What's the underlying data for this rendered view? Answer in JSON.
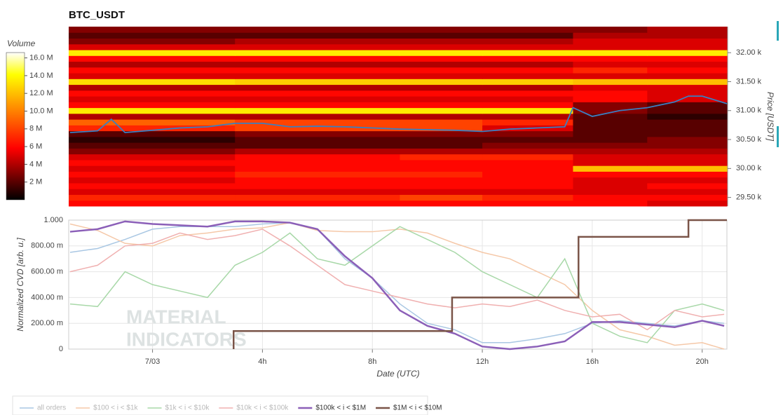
{
  "chart_data": [
    {
      "type": "heatmap",
      "title": "BTC_USDT",
      "xlim": [
        -3.05,
        20.9
      ],
      "ylim": [
        29.35,
        32.45
      ],
      "x_edges": [
        -3.05,
        3,
        9,
        12,
        15.3,
        18,
        20.9
      ],
      "y_edges": [
        29.35,
        29.45,
        29.55,
        29.65,
        29.75,
        29.85,
        29.95,
        30.05,
        30.15,
        30.25,
        30.35,
        30.45,
        30.55,
        30.65,
        30.75,
        30.85,
        30.95,
        31.05,
        31.15,
        31.25,
        31.35,
        31.45,
        31.55,
        31.65,
        31.75,
        31.85,
        31.95,
        32.05,
        32.15,
        32.25,
        32.35,
        32.45
      ],
      "z": [
        [
          6,
          6,
          6,
          6,
          6,
          5
        ],
        [
          7,
          7,
          8,
          7,
          6,
          6
        ],
        [
          5,
          5,
          5,
          5,
          5,
          5
        ],
        [
          6,
          6,
          6,
          6,
          5,
          6
        ],
        [
          5,
          6,
          6,
          6,
          5,
          5
        ],
        [
          6,
          7,
          7,
          6,
          6,
          6
        ],
        [
          5,
          6,
          6,
          6,
          12,
          12
        ],
        [
          6,
          6,
          6,
          6,
          5,
          5
        ],
        [
          5,
          6,
          7,
          7,
          5,
          5
        ],
        [
          3,
          4,
          4,
          4,
          4,
          4
        ],
        [
          2,
          2,
          2,
          3,
          3,
          3
        ],
        [
          1,
          2,
          2,
          2,
          2,
          3
        ],
        [
          2,
          3,
          3,
          3,
          2,
          2
        ],
        [
          7,
          8,
          8,
          5,
          2,
          2
        ],
        [
          9,
          8,
          8,
          7,
          2,
          2
        ],
        [
          4,
          4,
          4,
          4,
          2,
          1
        ],
        [
          13.5,
          13.5,
          13.5,
          13.5,
          3,
          2
        ],
        [
          6,
          6,
          6,
          6,
          3,
          2
        ],
        [
          5,
          5,
          5,
          5,
          6,
          5
        ],
        [
          6,
          6,
          6,
          6,
          6,
          5
        ],
        [
          4,
          4,
          4,
          4,
          5,
          5
        ],
        [
          13,
          12.5,
          12.5,
          12.5,
          12,
          12
        ],
        [
          5,
          5,
          5,
          5,
          5,
          5
        ],
        [
          6,
          6,
          6,
          6,
          7,
          6
        ],
        [
          4,
          4,
          4,
          4,
          5,
          5
        ],
        [
          6,
          6,
          6,
          6,
          6,
          6
        ],
        [
          13.5,
          13.5,
          13.5,
          13.5,
          13.5,
          13.5
        ],
        [
          5,
          5,
          5,
          5,
          5,
          5
        ],
        [
          3,
          4,
          4,
          4,
          5,
          5
        ],
        [
          2,
          2,
          2,
          2,
          4,
          4
        ],
        [
          3,
          3,
          3,
          3,
          3,
          4
        ]
      ],
      "colorbar_title": "Volume",
      "clim": [
        0,
        16.6
      ],
      "cticks": [
        {
          "value": 2,
          "label": "2 M"
        },
        {
          "value": 4,
          "label": "4 M"
        },
        {
          "value": 6,
          "label": "6 M"
        },
        {
          "value": 8,
          "label": "8 M"
        },
        {
          "value": 10,
          "label": "10.0 M"
        },
        {
          "value": 12,
          "label": "12.0 M"
        },
        {
          "value": 14,
          "label": "14.0 M"
        },
        {
          "value": 16,
          "label": "16.0 M"
        }
      ],
      "ylabel": "Price [USDT]",
      "yticks": [
        {
          "value": 29.5,
          "label": "29.50 k"
        },
        {
          "value": 30,
          "label": "30.00 k"
        },
        {
          "value": 30.5,
          "label": "30.50 k"
        },
        {
          "value": 31,
          "label": "31.00 k"
        },
        {
          "value": 31.5,
          "label": "31.50 k"
        },
        {
          "value": 32,
          "label": "32.00 k"
        }
      ],
      "line": {
        "color": "#3a7fc1",
        "x": [
          -3,
          -2,
          -1.5,
          -1,
          0,
          1,
          2,
          3,
          4,
          5,
          6,
          7,
          8,
          9,
          10,
          11,
          12,
          13,
          14,
          15,
          15.3,
          16,
          17,
          18,
          19,
          19.5,
          20,
          20.9
        ],
        "y": [
          30.62,
          30.65,
          30.85,
          30.62,
          30.66,
          30.7,
          30.72,
          30.78,
          30.78,
          30.72,
          30.73,
          30.72,
          30.7,
          30.68,
          30.67,
          30.66,
          30.64,
          30.68,
          30.7,
          30.72,
          31.05,
          30.9,
          31.0,
          31.05,
          31.15,
          31.25,
          31.25,
          31.12
        ]
      }
    },
    {
      "type": "line",
      "xlabel": "Date (UTC)",
      "ylabel": "Normalized CVD [arb. u.]",
      "watermark": [
        "MATERIAL",
        "INDICATORS"
      ],
      "xlim": [
        -3.05,
        20.9
      ],
      "ylim": [
        0,
        1
      ],
      "grid": true,
      "xticks": [
        {
          "value": 0,
          "label": "7/03"
        },
        {
          "value": 4,
          "label": "4h"
        },
        {
          "value": 8,
          "label": "8h"
        },
        {
          "value": 12,
          "label": "12h"
        },
        {
          "value": 16,
          "label": "16h"
        },
        {
          "value": 20,
          "label": "20h"
        }
      ],
      "yticks": [
        0,
        {
          "value": 0.2,
          "label": "200.00 m"
        },
        {
          "value": 0.4,
          "label": "400.00 m"
        },
        {
          "value": 0.6,
          "label": "600.00 m"
        },
        {
          "value": 0.8,
          "label": "800.00 m"
        },
        {
          "value": 1,
          "label": "1.000"
        }
      ],
      "x": [
        -3,
        -2,
        -1,
        0,
        1,
        2,
        3,
        4,
        5,
        6,
        7,
        8,
        9,
        10,
        11,
        12,
        13,
        14,
        15,
        16,
        17,
        18,
        19,
        20,
        20.8
      ],
      "series": [
        {
          "name": "all orders",
          "color": "#a9c7e3",
          "width": 1.5,
          "values": [
            0.75,
            0.78,
            0.85,
            0.93,
            0.95,
            0.95,
            0.95,
            0.97,
            0.98,
            0.93,
            0.7,
            0.55,
            0.35,
            0.2,
            0.15,
            0.05,
            0.05,
            0.08,
            0.12,
            0.2,
            0.22,
            0.2,
            0.18,
            0.22,
            0.2
          ]
        },
        {
          "name": "$100 < i < $1k",
          "color": "#f5c8a8",
          "width": 1.5,
          "values": [
            0.97,
            0.92,
            0.82,
            0.8,
            0.88,
            0.9,
            0.93,
            0.94,
            0.98,
            0.92,
            0.91,
            0.91,
            0.93,
            0.9,
            0.82,
            0.75,
            0.7,
            0.6,
            0.5,
            0.3,
            0.15,
            0.1,
            0.03,
            0.05,
            0
          ]
        },
        {
          "name": "$1k < i < $10k",
          "color": "#a8d8a8",
          "width": 1.5,
          "values": [
            0.35,
            0.33,
            0.6,
            0.5,
            0.45,
            0.4,
            0.65,
            0.75,
            0.9,
            0.7,
            0.65,
            0.8,
            0.95,
            0.85,
            0.75,
            0.6,
            0.5,
            0.4,
            0.7,
            0.2,
            0.1,
            0.05,
            0.3,
            0.35,
            0.3
          ]
        },
        {
          "name": "$10k < i < $100k",
          "color": "#f0b0b0",
          "width": 1.5,
          "values": [
            0.6,
            0.65,
            0.8,
            0.82,
            0.9,
            0.85,
            0.88,
            0.93,
            0.8,
            0.65,
            0.5,
            0.45,
            0.4,
            0.35,
            0.32,
            0.35,
            0.33,
            0.38,
            0.3,
            0.25,
            0.27,
            0.15,
            0.3,
            0.25,
            0.27
          ]
        },
        {
          "name": "$100k < i < $1M",
          "color": "#8b5fb8",
          "width": 2.5,
          "values": [
            0.91,
            0.93,
            0.99,
            0.97,
            0.96,
            0.95,
            0.99,
            0.99,
            0.98,
            0.93,
            0.72,
            0.55,
            0.3,
            0.18,
            0.12,
            0.02,
            0,
            0.02,
            0.06,
            0.21,
            0.21,
            0.19,
            0.17,
            0.22,
            0.18
          ]
        },
        {
          "name": "$1M < i < $10M",
          "color": "#7a5448",
          "width": 2.5,
          "x": [
            2.95,
            2.95,
            10.9,
            10.9,
            15.5,
            15.5,
            19.5,
            19.5,
            20.9
          ],
          "values": [
            0,
            0.14,
            0.14,
            0.4,
            0.4,
            0.87,
            0.87,
            1,
            1
          ]
        }
      ]
    }
  ]
}
